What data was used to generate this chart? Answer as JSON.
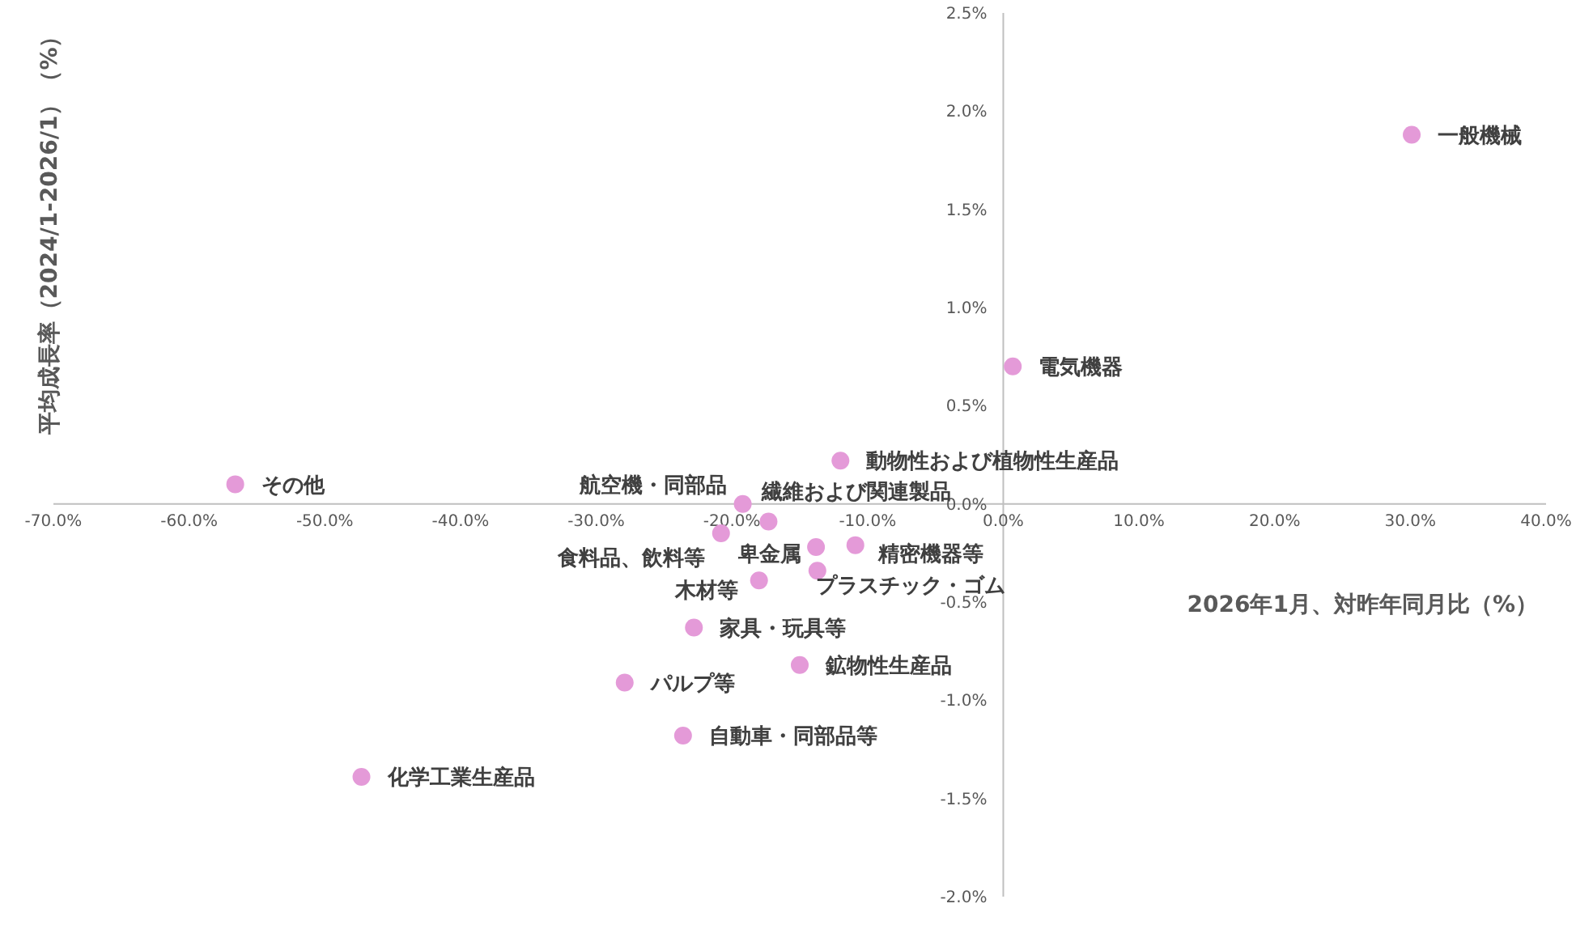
{
  "chart_data": {
    "type": "scatter",
    "xlabel": "2026年1月、対昨年同月比（%）",
    "ylabel": "平均成長率（2024/1-2026/1）（%）",
    "xlim": [
      -70,
      40
    ],
    "ylim": [
      -2,
      2.5
    ],
    "xticks": [
      {
        "value": -70,
        "label": "-70.0%"
      },
      {
        "value": -60,
        "label": "-60.0%"
      },
      {
        "value": -50,
        "label": "-50.0%"
      },
      {
        "value": -40,
        "label": "-40.0%"
      },
      {
        "value": -30,
        "label": "-30.0%"
      },
      {
        "value": -20,
        "label": "-20.0%"
      },
      {
        "value": -10,
        "label": "-10.0%"
      },
      {
        "value": 0,
        "label": "0.0%"
      },
      {
        "value": 10,
        "label": "10.0%"
      },
      {
        "value": 20,
        "label": "20.0%"
      },
      {
        "value": 30,
        "label": "30.0%"
      },
      {
        "value": 40,
        "label": "40.0%"
      }
    ],
    "yticks": [
      {
        "value": -2,
        "label": "-2.0%"
      },
      {
        "value": -1.5,
        "label": "-1.5%"
      },
      {
        "value": -1,
        "label": "-1.0%"
      },
      {
        "value": -0.5,
        "label": "-0.5%"
      },
      {
        "value": 0,
        "label": "0.0%"
      },
      {
        "value": 0.5,
        "label": "0.5%"
      },
      {
        "value": 1,
        "label": "1.0%"
      },
      {
        "value": 1.5,
        "label": "1.5%"
      },
      {
        "value": 2,
        "label": "2.0%"
      },
      {
        "value": 2.5,
        "label": "2.5%"
      }
    ],
    "grid": false,
    "marker": "circle",
    "series": [
      {
        "name": "一般機械",
        "color": "#e49ad8",
        "x": [
          30.1
        ],
        "values": [
          1.88
        ]
      },
      {
        "name": "電気機器",
        "color": "#e49ad8",
        "x": [
          0.7
        ],
        "values": [
          0.7
        ]
      },
      {
        "name": "動物性および植物性生産品",
        "color": "#e49ad8",
        "x": [
          -12.0
        ],
        "values": [
          0.22
        ]
      },
      {
        "name": "その他",
        "color": "#e49ad8",
        "x": [
          -56.6
        ],
        "values": [
          0.1
        ]
      },
      {
        "name": "航空機・同部品",
        "color": "#e49ad8",
        "x": [
          -19.2
        ],
        "values": [
          0.0
        ]
      },
      {
        "name": "繊維および関連製品",
        "color": "#e49ad8",
        "x": [
          -17.3
        ],
        "values": [
          -0.09
        ]
      },
      {
        "name": "食料品、飲料等",
        "color": "#e49ad8",
        "x": [
          -20.8
        ],
        "values": [
          -0.15
        ]
      },
      {
        "name": "卑金属",
        "color": "#e49ad8",
        "x": [
          -13.8
        ],
        "values": [
          -0.22
        ]
      },
      {
        "name": "精密機器等",
        "color": "#e49ad8",
        "x": [
          -10.9
        ],
        "values": [
          -0.21
        ]
      },
      {
        "name": "プラスチック・ゴム",
        "color": "#e49ad8",
        "x": [
          -13.7
        ],
        "values": [
          -0.34
        ]
      },
      {
        "name": "木材等",
        "color": "#e49ad8",
        "x": [
          -18.0
        ],
        "values": [
          -0.39
        ]
      },
      {
        "name": "家具・玩具等",
        "color": "#e49ad8",
        "x": [
          -22.8
        ],
        "values": [
          -0.63
        ]
      },
      {
        "name": "鉱物性生産品",
        "color": "#e49ad8",
        "x": [
          -15.0
        ],
        "values": [
          -0.82
        ]
      },
      {
        "name": "パルプ等",
        "color": "#e49ad8",
        "x": [
          -27.9
        ],
        "values": [
          -0.91
        ]
      },
      {
        "name": "自動車・同部品等",
        "color": "#e49ad8",
        "x": [
          -23.6
        ],
        "values": [
          -1.18
        ]
      },
      {
        "name": "化学工業生産品",
        "color": "#e49ad8",
        "x": [
          -47.3
        ],
        "values": [
          -1.39
        ]
      }
    ]
  }
}
